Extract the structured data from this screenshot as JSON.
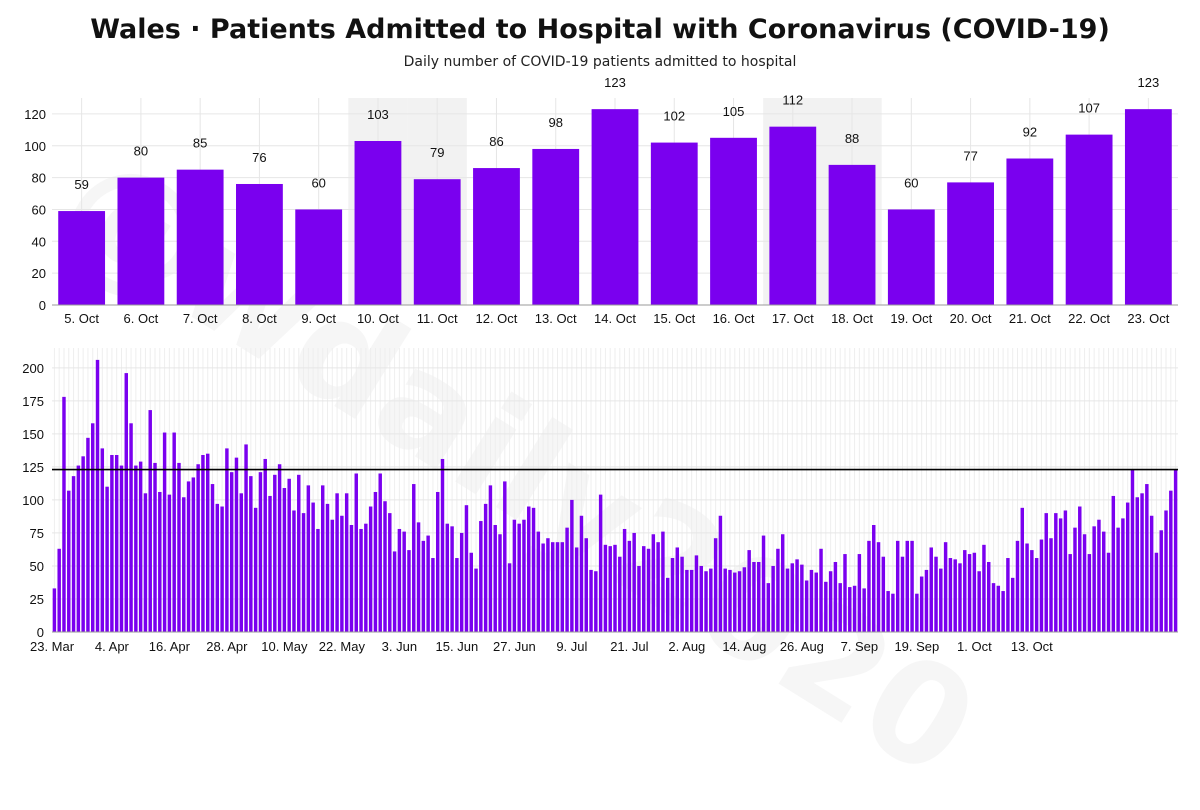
{
  "title": "Wales · Patients Admitted to Hospital with Coronavirus (COVID-19)",
  "subtitle": "Daily number of COVID-19 patients admitted to hospital",
  "watermark": "@wdaily2020",
  "colors": {
    "bar": "#7a00ef",
    "reference_line": "#000000",
    "highlight": "#f2f2f2",
    "grid": "#e6e6e6"
  },
  "chart_data": [
    {
      "type": "bar",
      "categories": [
        "5. Oct",
        "6. Oct",
        "7. Oct",
        "8. Oct",
        "9. Oct",
        "10. Oct",
        "11. Oct",
        "12. Oct",
        "13. Oct",
        "14. Oct",
        "15. Oct",
        "16. Oct",
        "17. Oct",
        "18. Oct",
        "19. Oct",
        "20. Oct",
        "21. Oct",
        "22. Oct",
        "23. Oct"
      ],
      "values": [
        59,
        80,
        85,
        76,
        60,
        103,
        79,
        86,
        98,
        123,
        102,
        105,
        112,
        88,
        60,
        77,
        92,
        107,
        123
      ],
      "highlighted_categories": [
        "10. Oct",
        "11. Oct",
        "17. Oct",
        "18. Oct"
      ],
      "ylim": [
        0,
        130
      ],
      "yticks": [
        0,
        20,
        40,
        60,
        80,
        100,
        120
      ],
      "grid": true,
      "data_labels": true
    },
    {
      "type": "bar",
      "x_start": "23. Mar",
      "x_tick_labels": [
        "23. Mar",
        "4. Apr",
        "16. Apr",
        "28. Apr",
        "10. May",
        "22. May",
        "3. Jun",
        "15. Jun",
        "27. Jun",
        "9. Jul",
        "21. Jul",
        "2. Aug",
        "14. Aug",
        "26. Aug",
        "7. Sep",
        "19. Sep",
        "1. Oct",
        "13. Oct"
      ],
      "values": [
        33,
        63,
        178,
        107,
        118,
        126,
        133,
        147,
        158,
        206,
        139,
        110,
        134,
        134,
        126,
        196,
        158,
        126,
        129,
        105,
        168,
        128,
        106,
        151,
        104,
        151,
        128,
        102,
        114,
        117,
        127,
        134,
        135,
        112,
        97,
        95,
        139,
        121,
        132,
        105,
        142,
        118,
        94,
        121,
        131,
        103,
        119,
        127,
        109,
        116,
        92,
        119,
        90,
        111,
        98,
        78,
        111,
        97,
        85,
        105,
        88,
        105,
        81,
        120,
        78,
        82,
        95,
        106,
        120,
        99,
        90,
        61,
        78,
        76,
        62,
        112,
        83,
        69,
        73,
        56,
        106,
        131,
        82,
        80,
        56,
        75,
        96,
        60,
        48,
        84,
        97,
        111,
        81,
        74,
        114,
        52,
        85,
        82,
        85,
        95,
        94,
        76,
        67,
        71,
        68,
        68,
        68,
        79,
        100,
        64,
        88,
        71,
        47,
        46,
        104,
        66,
        65,
        66,
        57,
        78,
        69,
        75,
        50,
        65,
        63,
        74,
        68,
        76,
        41,
        56,
        64,
        57,
        47,
        47,
        58,
        50,
        46,
        48,
        71,
        88,
        48,
        47,
        45,
        46,
        49,
        62,
        53,
        53,
        73,
        37,
        50,
        63,
        74,
        48,
        52,
        55,
        51,
        39,
        47,
        45,
        63,
        38,
        46,
        53,
        37,
        59,
        34,
        35,
        59,
        33,
        69,
        81,
        68,
        57,
        31,
        29,
        69,
        57,
        69,
        69,
        29,
        42,
        47,
        64,
        57,
        48,
        68,
        56,
        55,
        52,
        62,
        59,
        60,
        46,
        66,
        53,
        37,
        35,
        31,
        56,
        41,
        69,
        94,
        67,
        62,
        56,
        70,
        90,
        71,
        90,
        86,
        92,
        59,
        79,
        95,
        74,
        59,
        80,
        85,
        76,
        60,
        103,
        79,
        86,
        98,
        123,
        102,
        105,
        112,
        88,
        60,
        77,
        92,
        107,
        123
      ],
      "reference_value": 123,
      "ylim": [
        0,
        215
      ],
      "yticks": [
        0,
        25,
        50,
        75,
        100,
        125,
        150,
        175,
        200
      ],
      "grid": true
    }
  ]
}
